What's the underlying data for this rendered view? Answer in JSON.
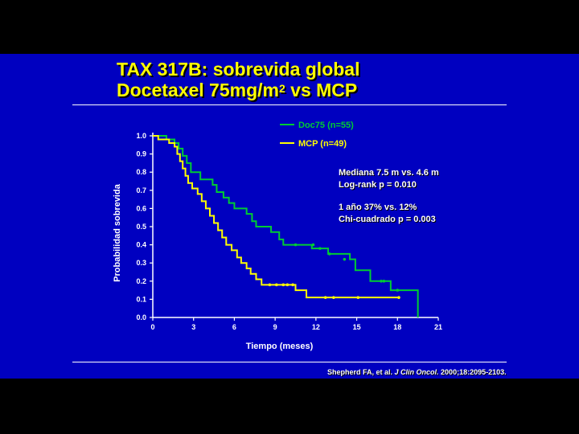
{
  "slide": {
    "title_line1": "TAX 317B: sobrevida global",
    "title_line2_pre": "Docetaxel 75mg/m",
    "title_line2_sup": "2",
    "title_line2_post": " vs MCP",
    "annotations": [
      "Mediana  7.5 m vs. 4.6 m",
      "Log-rank p = 0.010",
      "1 año  37% vs. 12%",
      "Chi-cuadrado p = 0.003"
    ],
    "citation_pre": "Shepherd FA, et al. ",
    "citation_journal": "J Clin Oncol.",
    "citation_post": " 2000;18:2095-2103."
  },
  "colors": {
    "background": "#0000c0",
    "title": "#ffff00",
    "doc75": "#00cc33",
    "mcp": "#ffff00"
  },
  "chart_data": {
    "type": "line",
    "xlabel": "Tiempo (meses)",
    "ylabel": "Probabilidad sobrevida",
    "xlim": [
      0,
      21
    ],
    "ylim": [
      0,
      1
    ],
    "xticks": [
      0,
      3,
      6,
      9,
      12,
      15,
      18,
      21
    ],
    "yticks": [
      0.0,
      0.1,
      0.2,
      0.3,
      0.4,
      0.5,
      0.6,
      0.7,
      0.8,
      0.9,
      1.0
    ],
    "ytick_labels": [
      "0.0",
      "0.1",
      "0.2",
      "0.3",
      "0.4",
      "0.5",
      "0.6",
      "0.7",
      "0.8",
      "0.9",
      "1.0"
    ],
    "step": true,
    "series": [
      {
        "name": "Doc75 (n=55)",
        "color": "#00cc33",
        "points": [
          [
            0,
            1.0
          ],
          [
            1.0,
            0.98
          ],
          [
            1.6,
            0.96
          ],
          [
            1.9,
            0.93
          ],
          [
            2.2,
            0.89
          ],
          [
            2.5,
            0.85
          ],
          [
            2.8,
            0.8
          ],
          [
            3.5,
            0.76
          ],
          [
            4.4,
            0.73
          ],
          [
            4.7,
            0.69
          ],
          [
            5.2,
            0.66
          ],
          [
            5.6,
            0.63
          ],
          [
            6.0,
            0.6
          ],
          [
            6.9,
            0.57
          ],
          [
            7.3,
            0.53
          ],
          [
            7.6,
            0.5
          ],
          [
            8.7,
            0.47
          ],
          [
            9.3,
            0.43
          ],
          [
            9.6,
            0.4
          ],
          [
            11.7,
            0.38
          ],
          [
            12.9,
            0.35
          ],
          [
            14.5,
            0.32
          ],
          [
            14.9,
            0.26
          ],
          [
            16.0,
            0.2
          ],
          [
            17.5,
            0.15
          ],
          [
            19.5,
            0.15
          ],
          [
            19.5,
            0.0
          ]
        ],
        "censored": [
          [
            10.5,
            0.4
          ],
          [
            11.8,
            0.4
          ],
          [
            12.3,
            0.38
          ],
          [
            13.0,
            0.35
          ],
          [
            14.1,
            0.32
          ],
          [
            16.8,
            0.2
          ],
          [
            17.0,
            0.2
          ],
          [
            18.0,
            0.15
          ]
        ]
      },
      {
        "name": "MCP (n=49)",
        "color": "#ffff00",
        "points": [
          [
            0,
            1.0
          ],
          [
            0.4,
            0.98
          ],
          [
            1.2,
            0.96
          ],
          [
            1.6,
            0.94
          ],
          [
            1.8,
            0.9
          ],
          [
            2.0,
            0.86
          ],
          [
            2.2,
            0.82
          ],
          [
            2.4,
            0.78
          ],
          [
            2.6,
            0.74
          ],
          [
            2.9,
            0.71
          ],
          [
            3.3,
            0.68
          ],
          [
            3.6,
            0.64
          ],
          [
            3.9,
            0.6
          ],
          [
            4.2,
            0.56
          ],
          [
            4.5,
            0.52
          ],
          [
            4.8,
            0.48
          ],
          [
            5.1,
            0.44
          ],
          [
            5.4,
            0.4
          ],
          [
            5.8,
            0.37
          ],
          [
            6.2,
            0.33
          ],
          [
            6.5,
            0.3
          ],
          [
            6.9,
            0.27
          ],
          [
            7.2,
            0.24
          ],
          [
            7.6,
            0.21
          ],
          [
            8.0,
            0.18
          ],
          [
            10.5,
            0.15
          ],
          [
            11.3,
            0.11
          ],
          [
            18.1,
            0.11
          ]
        ],
        "censored": [
          [
            8.6,
            0.18
          ],
          [
            9.1,
            0.18
          ],
          [
            9.6,
            0.18
          ],
          [
            9.9,
            0.18
          ],
          [
            10.3,
            0.18
          ],
          [
            12.7,
            0.11
          ],
          [
            13.3,
            0.11
          ],
          [
            15.1,
            0.11
          ],
          [
            18.1,
            0.11
          ]
        ]
      }
    ]
  }
}
